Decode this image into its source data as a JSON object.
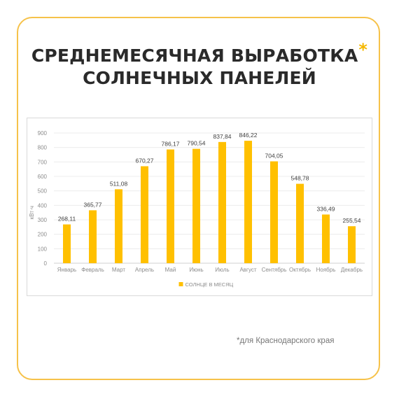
{
  "title": {
    "line1": "СРЕДНЕМЕСЯЧНАЯ ВЫРАБОТКА",
    "line2": "СОЛНЕЧНЫХ ПАНЕЛЕЙ",
    "asterisk": "*"
  },
  "footnote": "*для Краснодарского края",
  "colors": {
    "bar": "#ffc000",
    "frame": "#f6c24a",
    "text": "#2a2a2a"
  },
  "chart_data": {
    "type": "bar",
    "categories": [
      "Январь",
      "Февраль",
      "Март",
      "Апрель",
      "Май",
      "Июнь",
      "Июль",
      "Август",
      "Сентябрь",
      "Октябрь",
      "Ноябрь",
      "Декабрь"
    ],
    "series": [
      {
        "name": "СОЛНЦЕ В МЕСЯЦ",
        "values": [
          268.11,
          365.77,
          511.08,
          670.27,
          786.17,
          790.54,
          837.84,
          846.22,
          704.05,
          548.78,
          336.49,
          255.54
        ],
        "labels": [
          "268,11",
          "365,77",
          "511,08",
          "670,27",
          "786,17",
          "790,54",
          "837,84",
          "846,22",
          "704,05",
          "548,78",
          "336,49",
          "255,54"
        ]
      }
    ],
    "ylabel": "кВт·ч",
    "ylim": [
      0,
      900
    ],
    "yticks": [
      0,
      100,
      200,
      300,
      400,
      500,
      600,
      700,
      800,
      900
    ],
    "grid": true,
    "legend": "bottom"
  }
}
